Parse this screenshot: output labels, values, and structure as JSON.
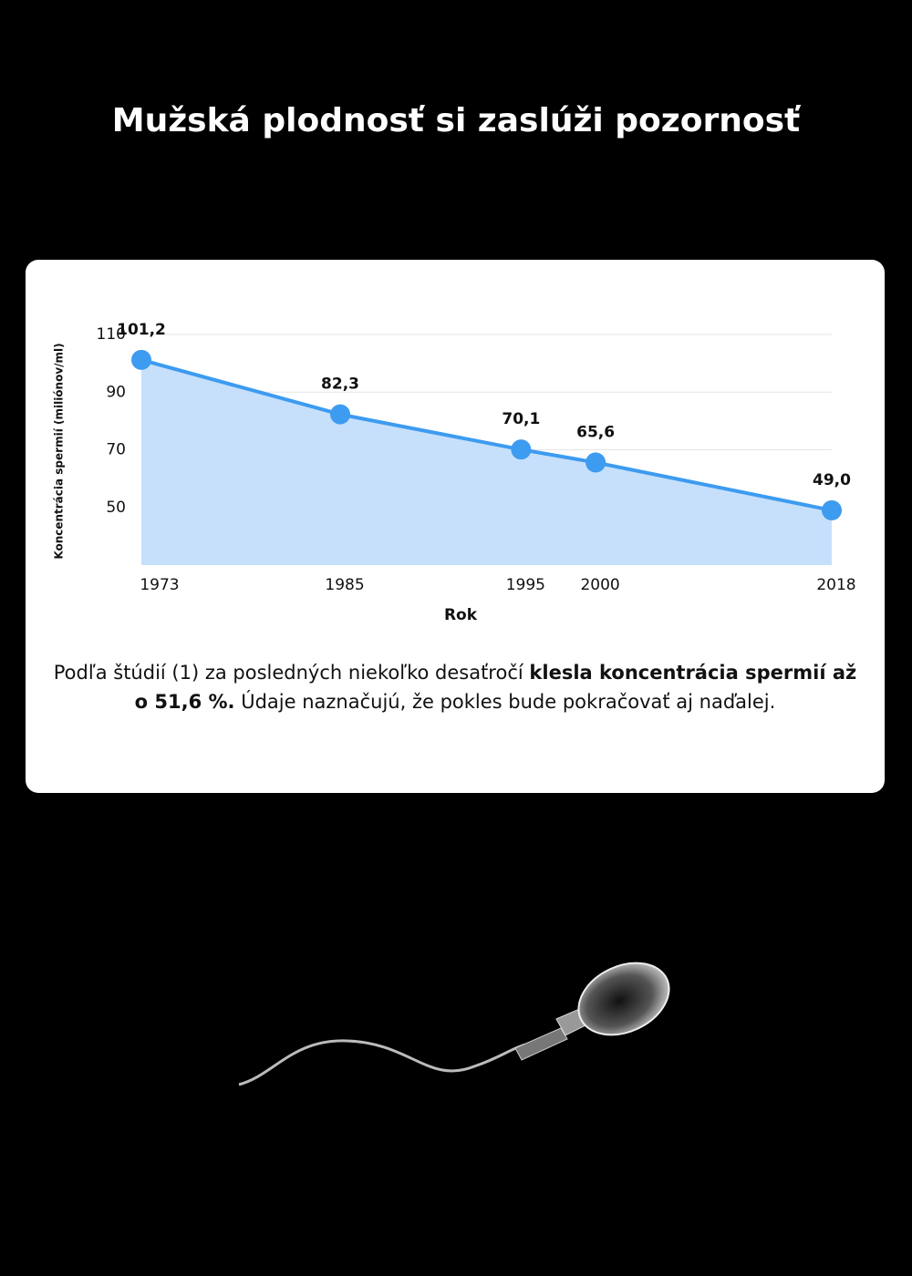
{
  "page": {
    "title": "Mužská plodnosť si zaslúži pozornosť",
    "paragraph": [
      "Podľa štúdií (1) za posledných niekoľko desaťročí",
      "klesla koncentrácia spermií až o 51,6 %.",
      "Údaje naznačujú, že pokles bude pokračovať aj naďalej."
    ]
  },
  "chart_data": {
    "type": "area-line",
    "x_label": "Rok",
    "y_label": "Koncentrácia spermií (miliónov/ml)",
    "categories": [
      "1973",
      "1985",
      "1995",
      "2000",
      "2018"
    ],
    "values": [
      101.2,
      82.3,
      70.1,
      65.6,
      49.0
    ],
    "value_labels": [
      "101,2",
      "82,3",
      "70,1",
      "65,6",
      "49,0"
    ],
    "color": "#3d9bf0",
    "area_color": "#c6e0fb",
    "ylim": [
      30,
      110
    ],
    "yticks": [
      50,
      70,
      90,
      110
    ],
    "grid": true
  }
}
